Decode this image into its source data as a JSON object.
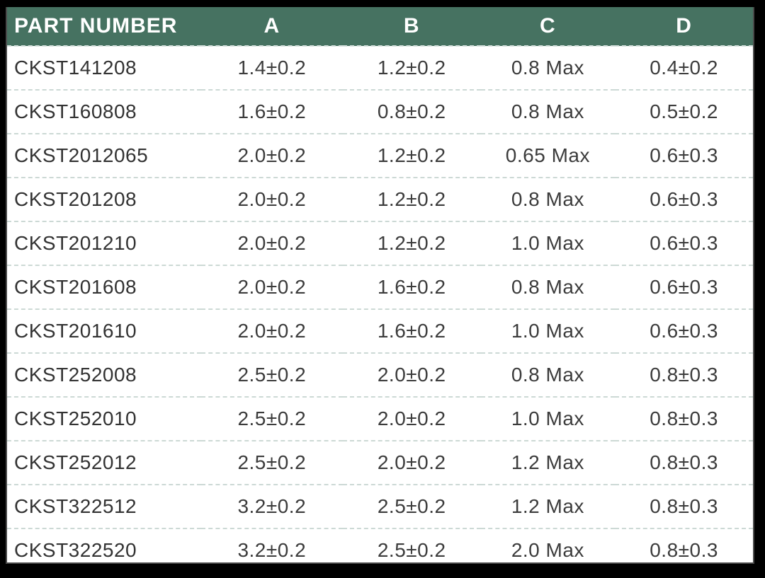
{
  "table": {
    "columns": [
      "PART NUMBER",
      "A",
      "B",
      "C",
      "D"
    ],
    "rows": [
      [
        "CKST141208",
        "1.4±0.2",
        "1.2±0.2",
        "0.8 Max",
        "0.4±0.2"
      ],
      [
        "CKST160808",
        "1.6±0.2",
        "0.8±0.2",
        "0.8 Max",
        "0.5±0.2"
      ],
      [
        "CKST2012065",
        "2.0±0.2",
        "1.2±0.2",
        "0.65 Max",
        "0.6±0.3"
      ],
      [
        "CKST201208",
        "2.0±0.2",
        "1.2±0.2",
        "0.8 Max",
        "0.6±0.3"
      ],
      [
        "CKST201210",
        "2.0±0.2",
        "1.2±0.2",
        "1.0 Max",
        "0.6±0.3"
      ],
      [
        "CKST201608",
        "2.0±0.2",
        "1.6±0.2",
        "0.8 Max",
        "0.6±0.3"
      ],
      [
        "CKST201610",
        "2.0±0.2",
        "1.6±0.2",
        "1.0 Max",
        "0.6±0.3"
      ],
      [
        "CKST252008",
        "2.5±0.2",
        "2.0±0.2",
        "0.8 Max",
        "0.8±0.3"
      ],
      [
        "CKST252010",
        "2.5±0.2",
        "2.0±0.2",
        "1.0 Max",
        "0.8±0.3"
      ],
      [
        "CKST252012",
        "2.5±0.2",
        "2.0±0.2",
        "1.2 Max",
        "0.8±0.3"
      ],
      [
        "CKST322512",
        "3.2±0.2",
        "2.5±0.2",
        "1.2 Max",
        "0.8±0.3"
      ],
      [
        "CKST322520",
        "3.2±0.2",
        "2.5±0.2",
        "2.0 Max",
        "0.8±0.3"
      ]
    ],
    "colors": {
      "header_background": "#467261",
      "header_text": "#ffffff",
      "body_text": "#3c3c3c",
      "row_divider": "#ccd9d5",
      "outer_border": "#4a4a4a",
      "page_background": "#000000"
    }
  }
}
